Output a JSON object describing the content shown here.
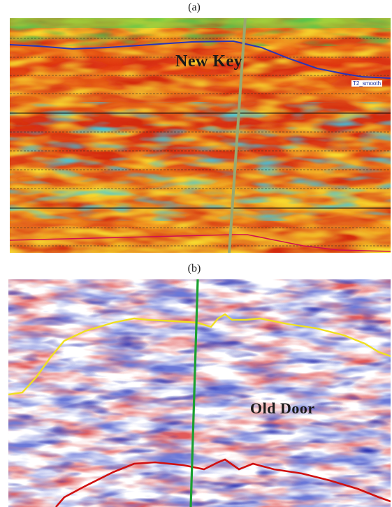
{
  "panel_a": {
    "caption": "(a)",
    "label": "New Key",
    "horizon_label": "T2_smooth",
    "colors": {
      "well": "#9aa870",
      "horizon_top": "#2a34b8",
      "horizon_bottom": "#d01050"
    }
  },
  "panel_b": {
    "caption": "(b)",
    "label": "Old Door",
    "colors": {
      "well": "#1aa030",
      "horizon_top": "#f0e020",
      "horizon_bottom": "#d01010"
    }
  }
}
